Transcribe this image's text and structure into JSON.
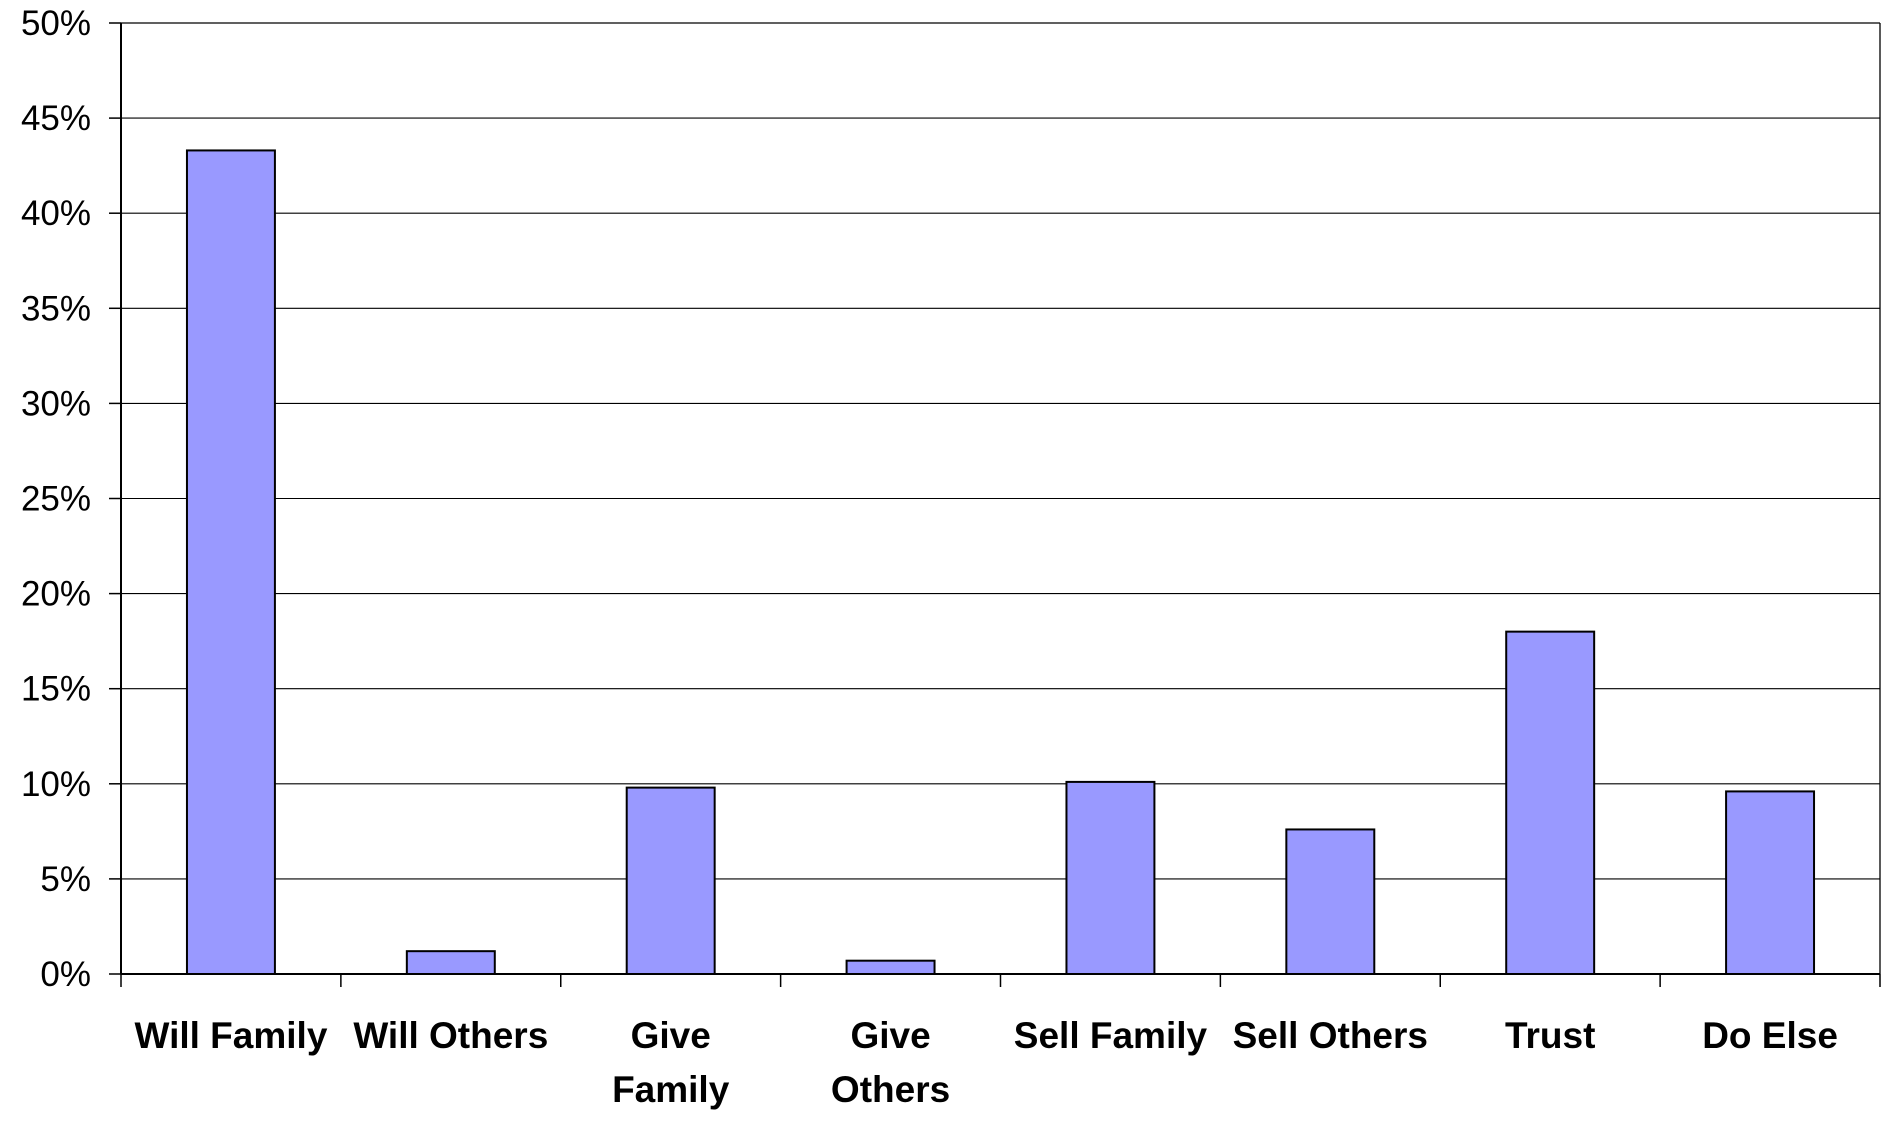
{
  "chart_data": {
    "type": "bar",
    "categories": [
      [
        "Will Family"
      ],
      [
        "Will Others"
      ],
      [
        "Give",
        "Family"
      ],
      [
        "Give",
        "Others"
      ],
      [
        "Sell Family"
      ],
      [
        "Sell Others"
      ],
      [
        "Trust"
      ],
      [
        "Do Else"
      ]
    ],
    "values": [
      43.3,
      1.2,
      9.8,
      0.7,
      10.1,
      7.6,
      18.0,
      9.6
    ],
    "ylim": [
      0,
      50
    ],
    "yticks": [
      0,
      5,
      10,
      15,
      20,
      25,
      30,
      35,
      40,
      45,
      50
    ],
    "ytick_labels": [
      "0%",
      "5%",
      "10%",
      "15%",
      "20%",
      "25%",
      "30%",
      "35%",
      "40%",
      "45%",
      "50%"
    ],
    "title": "",
    "xlabel": "",
    "ylabel": "",
    "grid": true,
    "legend": false,
    "bar_color": "#9999ff",
    "bar_edge_color": "#000000",
    "grid_color": "#000000"
  }
}
